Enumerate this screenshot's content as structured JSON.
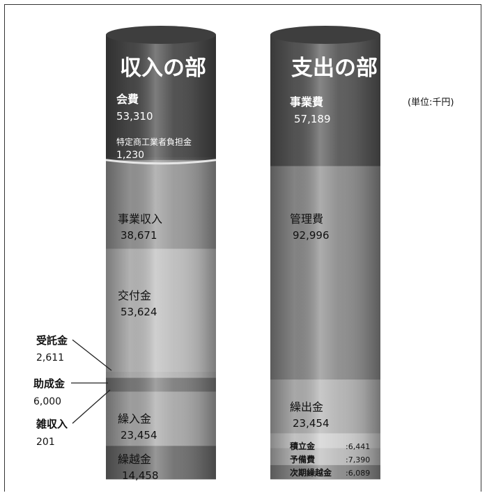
{
  "unit_note": "(単位:千円)",
  "chart_data": {
    "type": "stacked-cylinder",
    "columns": [
      {
        "title": "収入の部",
        "segments": [
          {
            "name": "会費",
            "value": 53310,
            "display": "53,310",
            "color": "#4a4a4a"
          },
          {
            "name": "特定商工業者負担金",
            "value": 1230,
            "display": "1,230",
            "color": "#515151"
          },
          {
            "name": "事業収入",
            "value": 38671,
            "display": "38,671",
            "color": "#999999"
          },
          {
            "name": "交付金",
            "value": 53624,
            "display": "53,624",
            "color": "#bdbdbd"
          },
          {
            "name": "受託金",
            "value": 2611,
            "display": "2,611",
            "color": "#b5b5b5"
          },
          {
            "name": "助成金",
            "value": 6000,
            "display": "6,000",
            "color": "#7d7d7d"
          },
          {
            "name": "雑収入",
            "value": 201,
            "display": "201",
            "color": "#a5a5a5"
          },
          {
            "name": "繰入金",
            "value": 23454,
            "display": "23,454",
            "color": "#a8a8a8"
          },
          {
            "name": "繰越金",
            "value": 14458,
            "display": "14,458",
            "color": "#6f6f6f"
          }
        ]
      },
      {
        "title": "支出の部",
        "segments": [
          {
            "name": "事業費",
            "value": 57189,
            "display": "57,189",
            "color": "#585858"
          },
          {
            "name": "管理費",
            "value": 92996,
            "display": "92,996",
            "color": "#8c8c8c"
          },
          {
            "name": "繰出金",
            "value": 23454,
            "display": "23,454",
            "color": "#b3b3b3"
          },
          {
            "name": "積立金",
            "value": 6441,
            "display": ":6,441",
            "color": "#cfcfcf"
          },
          {
            "name": "予備費",
            "value": 7390,
            "display": ":7,390",
            "color": "#bcbcbc"
          },
          {
            "name": "次期繰越金",
            "value": 6089,
            "display": ":6,089",
            "color": "#8a8a8a"
          }
        ]
      }
    ]
  }
}
